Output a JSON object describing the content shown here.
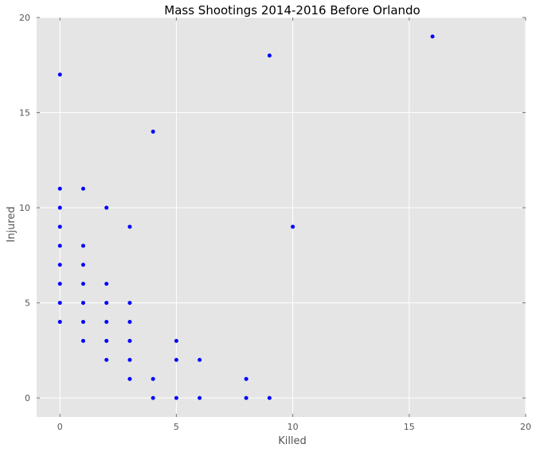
{
  "chart_data": {
    "type": "scatter",
    "title": "Mass Shootings 2014-2016 Before Orlando",
    "xlabel": "Killed",
    "ylabel": "Injured",
    "xlim": [
      -1,
      20
    ],
    "ylim": [
      -1,
      20
    ],
    "xticks": [
      0,
      5,
      10,
      15,
      20
    ],
    "yticks": [
      0,
      5,
      10,
      15,
      20
    ],
    "grid": true,
    "colors": {
      "background": "#e5e5e5",
      "grid": "#ffffff",
      "point": "#0000ff"
    },
    "points": [
      {
        "x": 0,
        "y": 17
      },
      {
        "x": 0,
        "y": 11
      },
      {
        "x": 0,
        "y": 10
      },
      {
        "x": 0,
        "y": 9
      },
      {
        "x": 0,
        "y": 8
      },
      {
        "x": 0,
        "y": 7
      },
      {
        "x": 0,
        "y": 6
      },
      {
        "x": 0,
        "y": 5
      },
      {
        "x": 0,
        "y": 4
      },
      {
        "x": 1,
        "y": 11
      },
      {
        "x": 1,
        "y": 8
      },
      {
        "x": 1,
        "y": 7
      },
      {
        "x": 1,
        "y": 6
      },
      {
        "x": 1,
        "y": 5
      },
      {
        "x": 1,
        "y": 4
      },
      {
        "x": 1,
        "y": 3
      },
      {
        "x": 2,
        "y": 10
      },
      {
        "x": 2,
        "y": 6
      },
      {
        "x": 2,
        "y": 5
      },
      {
        "x": 2,
        "y": 4
      },
      {
        "x": 2,
        "y": 3
      },
      {
        "x": 2,
        "y": 2
      },
      {
        "x": 3,
        "y": 9
      },
      {
        "x": 3,
        "y": 5
      },
      {
        "x": 3,
        "y": 4
      },
      {
        "x": 3,
        "y": 3
      },
      {
        "x": 3,
        "y": 2
      },
      {
        "x": 3,
        "y": 1
      },
      {
        "x": 4,
        "y": 14
      },
      {
        "x": 4,
        "y": 1
      },
      {
        "x": 4,
        "y": 0
      },
      {
        "x": 5,
        "y": 3
      },
      {
        "x": 5,
        "y": 2
      },
      {
        "x": 5,
        "y": 0
      },
      {
        "x": 6,
        "y": 2
      },
      {
        "x": 6,
        "y": 0
      },
      {
        "x": 8,
        "y": 1
      },
      {
        "x": 8,
        "y": 0
      },
      {
        "x": 9,
        "y": 18
      },
      {
        "x": 9,
        "y": 0
      },
      {
        "x": 10,
        "y": 9
      },
      {
        "x": 16,
        "y": 19
      }
    ]
  }
}
